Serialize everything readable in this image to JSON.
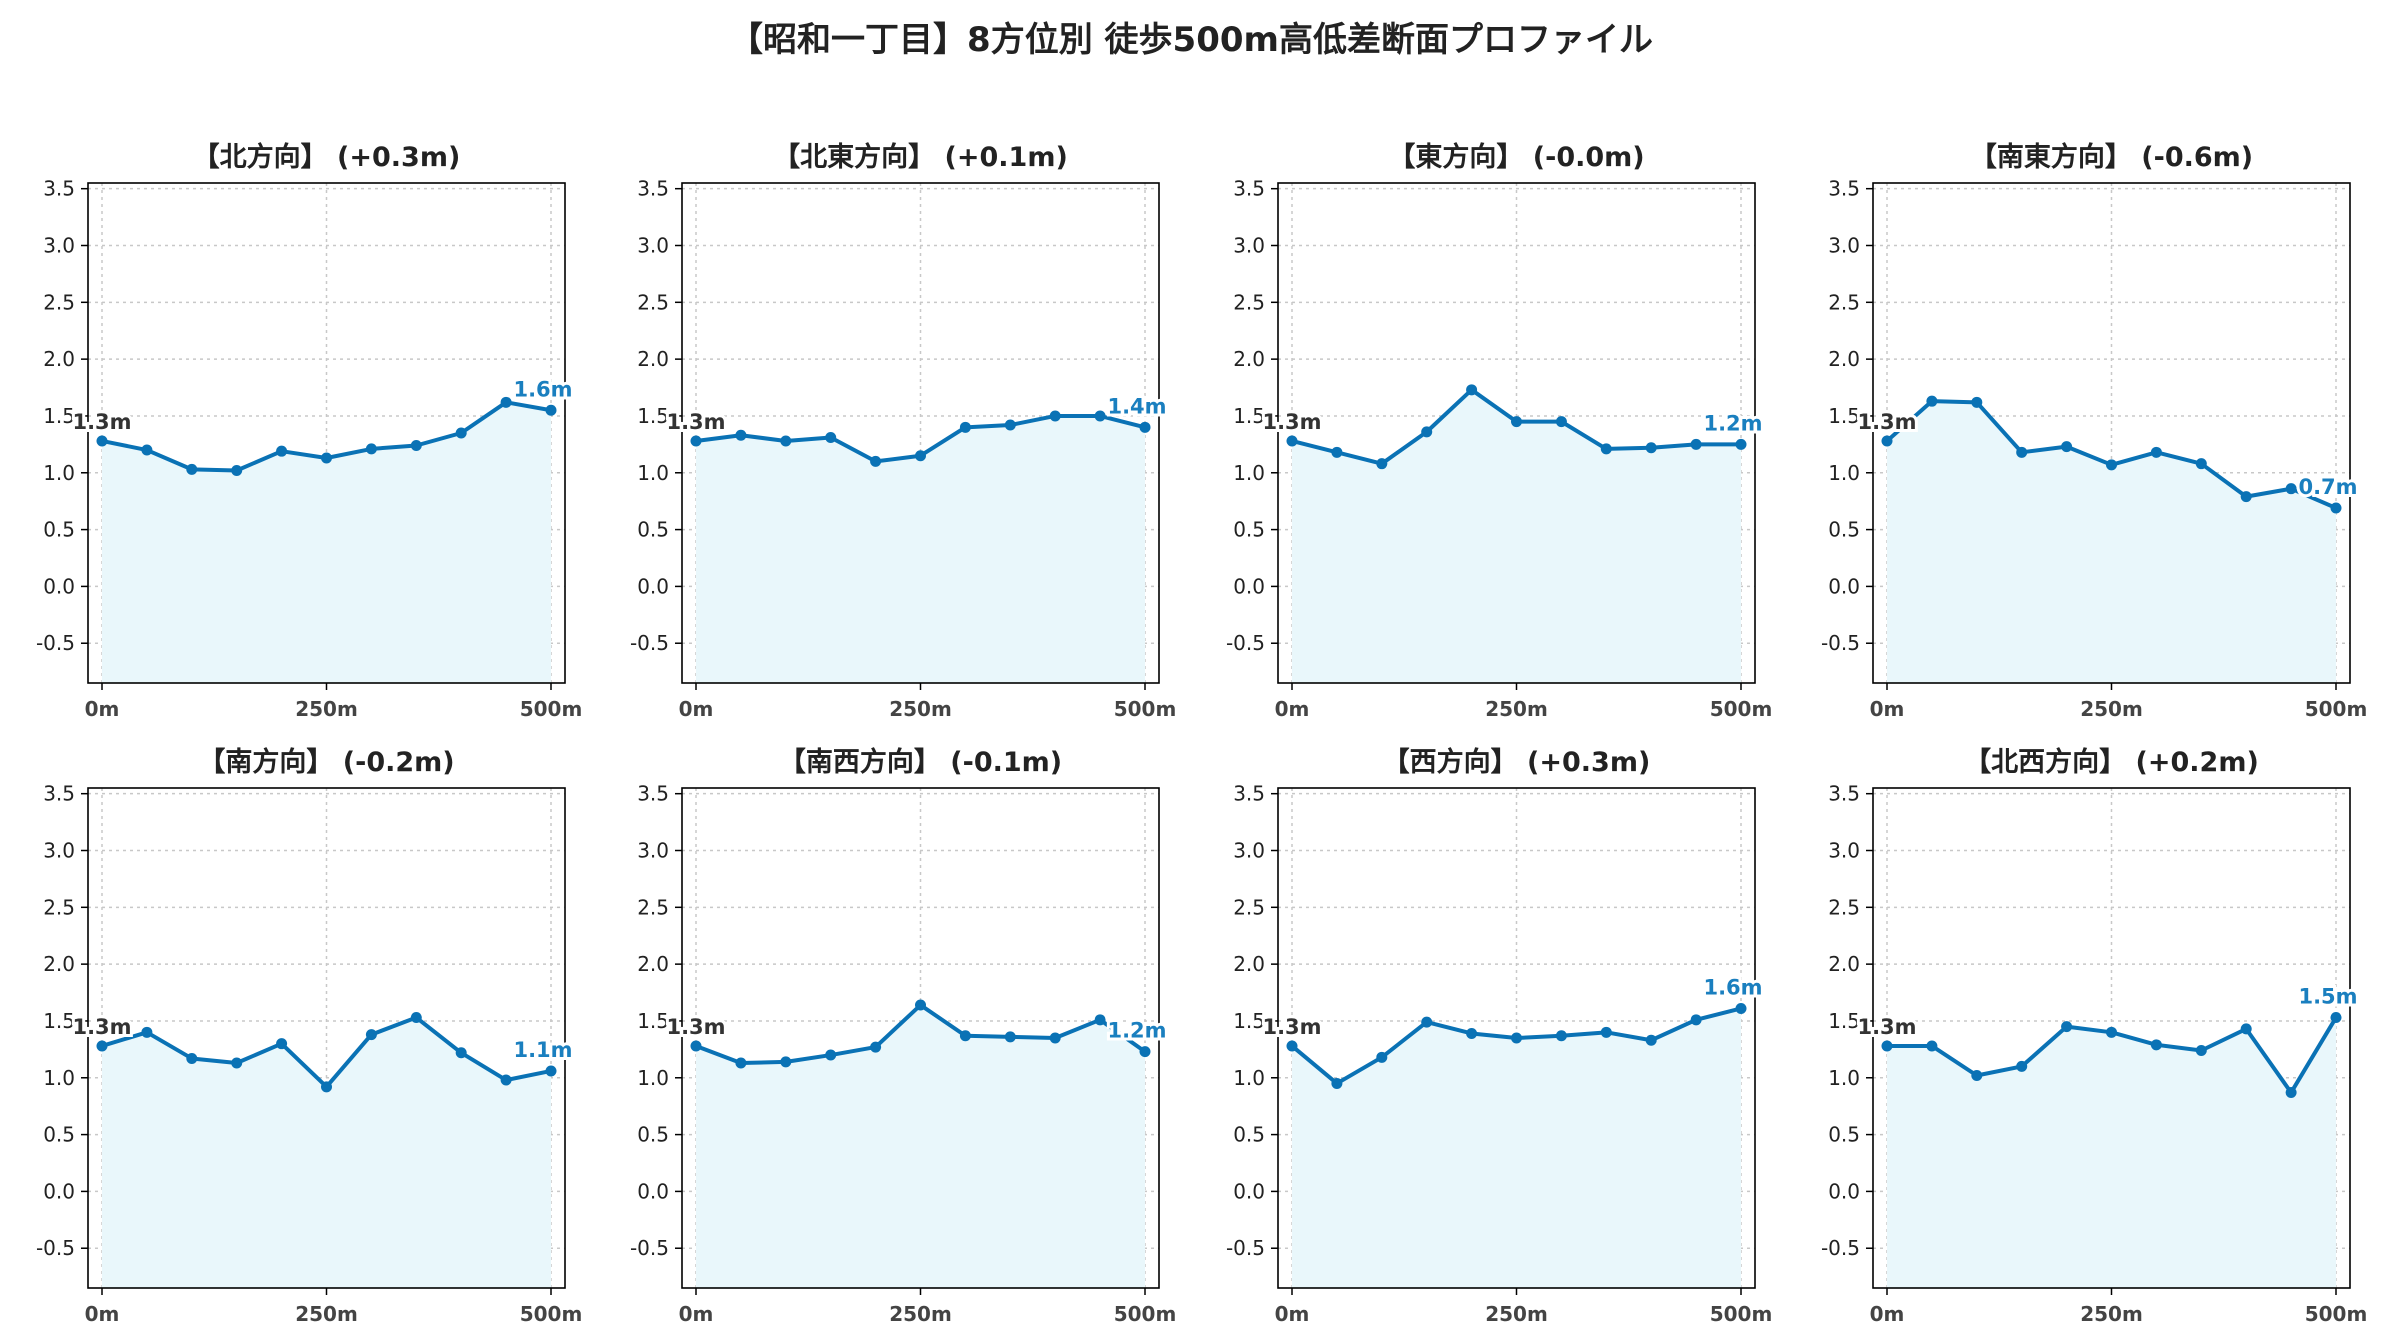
{
  "title": "【昭和一丁目】8方位別 徒歩500m高低差断面プロファイル",
  "colors": {
    "line": "#0a72b5",
    "fill": "#e9f7fb",
    "start_label": "#333333",
    "end_label": "#1a7fbf",
    "grid": "#c8c8c8",
    "axis": "#000000",
    "text": "#222222"
  },
  "chart_data": [
    {
      "type": "line",
      "title": "【北方向】 (+0.3m)",
      "x": [
        0,
        50,
        100,
        150,
        200,
        250,
        300,
        350,
        400,
        450,
        500
      ],
      "values": [
        1.28,
        1.2,
        1.03,
        1.02,
        1.19,
        1.13,
        1.21,
        1.24,
        1.35,
        1.62,
        1.55
      ],
      "start_label": "1.3m",
      "end_label": "1.6m",
      "xlim": [
        0,
        500
      ],
      "ylim": [
        -0.85,
        3.55
      ],
      "xticks": [
        "0m",
        "250m",
        "500m"
      ],
      "yticks": [
        "-0.5",
        "0.0",
        "0.5",
        "1.0",
        "1.5",
        "2.0",
        "2.5",
        "3.0",
        "3.5"
      ],
      "grid": true
    },
    {
      "type": "line",
      "title": "【北東方向】 (+0.1m)",
      "x": [
        0,
        50,
        100,
        150,
        200,
        250,
        300,
        350,
        400,
        450,
        500
      ],
      "values": [
        1.28,
        1.33,
        1.28,
        1.31,
        1.1,
        1.15,
        1.4,
        1.42,
        1.5,
        1.5,
        1.4
      ],
      "start_label": "1.3m",
      "end_label": "1.4m",
      "xlim": [
        0,
        500
      ],
      "ylim": [
        -0.85,
        3.55
      ],
      "xticks": [
        "0m",
        "250m",
        "500m"
      ],
      "yticks": [
        "-0.5",
        "0.0",
        "0.5",
        "1.0",
        "1.5",
        "2.0",
        "2.5",
        "3.0",
        "3.5"
      ],
      "grid": true
    },
    {
      "type": "line",
      "title": "【東方向】 (-0.0m)",
      "x": [
        0,
        50,
        100,
        150,
        200,
        250,
        300,
        350,
        400,
        450,
        500
      ],
      "values": [
        1.28,
        1.18,
        1.08,
        1.36,
        1.73,
        1.45,
        1.45,
        1.21,
        1.22,
        1.25,
        1.25
      ],
      "start_label": "1.3m",
      "end_label": "1.2m",
      "xlim": [
        0,
        500
      ],
      "ylim": [
        -0.85,
        3.55
      ],
      "xticks": [
        "0m",
        "250m",
        "500m"
      ],
      "yticks": [
        "-0.5",
        "0.0",
        "0.5",
        "1.0",
        "1.5",
        "2.0",
        "2.5",
        "3.0",
        "3.5"
      ],
      "grid": true
    },
    {
      "type": "line",
      "title": "【南東方向】 (-0.6m)",
      "x": [
        0,
        50,
        100,
        150,
        200,
        250,
        300,
        350,
        400,
        450,
        500
      ],
      "values": [
        1.28,
        1.63,
        1.62,
        1.18,
        1.23,
        1.07,
        1.18,
        1.08,
        0.79,
        0.86,
        0.69
      ],
      "start_label": "1.3m",
      "end_label": "0.7m",
      "xlim": [
        0,
        500
      ],
      "ylim": [
        -0.85,
        3.55
      ],
      "xticks": [
        "0m",
        "250m",
        "500m"
      ],
      "yticks": [
        "-0.5",
        "0.0",
        "0.5",
        "1.0",
        "1.5",
        "2.0",
        "2.5",
        "3.0",
        "3.5"
      ],
      "grid": true
    },
    {
      "type": "line",
      "title": "【南方向】 (-0.2m)",
      "x": [
        0,
        50,
        100,
        150,
        200,
        250,
        300,
        350,
        400,
        450,
        500
      ],
      "values": [
        1.28,
        1.4,
        1.17,
        1.13,
        1.3,
        0.92,
        1.38,
        1.53,
        1.22,
        0.98,
        1.06
      ],
      "start_label": "1.3m",
      "end_label": "1.1m",
      "xlim": [
        0,
        500
      ],
      "ylim": [
        -0.85,
        3.55
      ],
      "xticks": [
        "0m",
        "250m",
        "500m"
      ],
      "yticks": [
        "-0.5",
        "0.0",
        "0.5",
        "1.0",
        "1.5",
        "2.0",
        "2.5",
        "3.0",
        "3.5"
      ],
      "grid": true
    },
    {
      "type": "line",
      "title": "【南西方向】 (-0.1m)",
      "x": [
        0,
        50,
        100,
        150,
        200,
        250,
        300,
        350,
        400,
        450,
        500
      ],
      "values": [
        1.28,
        1.13,
        1.14,
        1.2,
        1.27,
        1.64,
        1.37,
        1.36,
        1.35,
        1.51,
        1.23
      ],
      "start_label": "1.3m",
      "end_label": "1.2m",
      "xlim": [
        0,
        500
      ],
      "ylim": [
        -0.85,
        3.55
      ],
      "xticks": [
        "0m",
        "250m",
        "500m"
      ],
      "yticks": [
        "-0.5",
        "0.0",
        "0.5",
        "1.0",
        "1.5",
        "2.0",
        "2.5",
        "3.0",
        "3.5"
      ],
      "grid": true
    },
    {
      "type": "line",
      "title": "【西方向】 (+0.3m)",
      "x": [
        0,
        50,
        100,
        150,
        200,
        250,
        300,
        350,
        400,
        450,
        500
      ],
      "values": [
        1.28,
        0.95,
        1.18,
        1.49,
        1.39,
        1.35,
        1.37,
        1.4,
        1.33,
        1.51,
        1.61
      ],
      "start_label": "1.3m",
      "end_label": "1.6m",
      "xlim": [
        0,
        500
      ],
      "ylim": [
        -0.85,
        3.55
      ],
      "xticks": [
        "0m",
        "250m",
        "500m"
      ],
      "yticks": [
        "-0.5",
        "0.0",
        "0.5",
        "1.0",
        "1.5",
        "2.0",
        "2.5",
        "3.0",
        "3.5"
      ],
      "grid": true
    },
    {
      "type": "line",
      "title": "【北西方向】 (+0.2m)",
      "x": [
        0,
        50,
        100,
        150,
        200,
        250,
        300,
        350,
        400,
        450,
        500
      ],
      "values": [
        1.28,
        1.28,
        1.02,
        1.1,
        1.45,
        1.4,
        1.29,
        1.24,
        1.43,
        0.87,
        1.53
      ],
      "start_label": "1.3m",
      "end_label": "1.5m",
      "xlim": [
        0,
        500
      ],
      "ylim": [
        -0.85,
        3.55
      ],
      "xticks": [
        "0m",
        "250m",
        "500m"
      ],
      "yticks": [
        "-0.5",
        "0.0",
        "0.5",
        "1.0",
        "1.5",
        "2.0",
        "2.5",
        "3.0",
        "3.5"
      ],
      "grid": true
    }
  ]
}
